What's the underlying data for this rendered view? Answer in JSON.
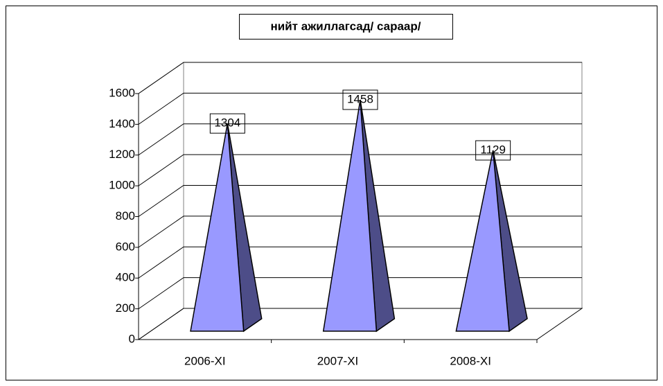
{
  "chart_data": {
    "type": "pyramid",
    "title": "нийт ажиллагсад/ сараар/",
    "categories": [
      "2006-XI",
      "2007-XI",
      "2008-XI"
    ],
    "values": [
      1304,
      1458,
      1129
    ],
    "color": "#9999ff",
    "side_color": "#4d4d88",
    "ylim": [
      0,
      1600
    ],
    "yticks": [
      0,
      200,
      400,
      600,
      800,
      1000,
      1200,
      1400,
      1600
    ],
    "grid": true
  }
}
